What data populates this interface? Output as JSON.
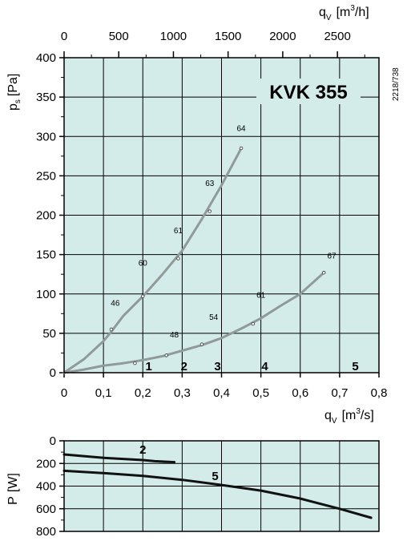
{
  "chart_data": [
    {
      "type": "line",
      "title": "KVK  355",
      "side_code": "2218/738",
      "colors": {
        "background": "#d4ece9",
        "grid": "#000000",
        "curve": "#8f9a99",
        "axis_text": "#000000"
      },
      "x_label": {
        "main": "q",
        "sub": "V",
        "unit": "[m",
        "sup": "3",
        "unit_end": "/s]"
      },
      "y_label": {
        "main": "p",
        "sub": "s",
        "unit": "[Pa]"
      },
      "top_axis_label": {
        "main": "q",
        "sub": "V",
        "unit": "[m",
        "sup": "3",
        "unit_end": "/h]"
      },
      "xlim": [
        0,
        0.8
      ],
      "ylim": [
        0,
        400
      ],
      "top_xlim": [
        0,
        2880
      ],
      "x_ticks": [
        "0",
        "0,1",
        "0,2",
        "0,3",
        "0,4",
        "0,5",
        "0,6",
        "0,7",
        "0,8"
      ],
      "y_ticks": [
        "0",
        "50",
        "100",
        "150",
        "200",
        "250",
        "300",
        "350",
        "400"
      ],
      "top_ticks": [
        "0",
        "500",
        "1000",
        "1500",
        "2000",
        "2500"
      ],
      "grid": true,
      "series": [
        {
          "points": [
            [
              0,
              0
            ],
            [
              0.05,
              17
            ],
            [
              0.1,
              40
            ],
            [
              0.12,
              52
            ],
            [
              0.15,
              72
            ],
            [
              0.2,
              97
            ],
            [
              0.25,
              125
            ],
            [
              0.3,
              155
            ],
            [
              0.35,
              195
            ],
            [
              0.4,
              238
            ],
            [
              0.45,
              285
            ]
          ]
        },
        {
          "points": [
            [
              0,
              0
            ],
            [
              0.05,
              4
            ],
            [
              0.1,
              9
            ],
            [
              0.15,
              12
            ],
            [
              0.2,
              16
            ],
            [
              0.25,
              21
            ],
            [
              0.3,
              28
            ],
            [
              0.35,
              35
            ],
            [
              0.4,
              44
            ],
            [
              0.45,
              56
            ],
            [
              0.5,
              69
            ],
            [
              0.55,
              85
            ],
            [
              0.6,
              100
            ],
            [
              0.66,
              127
            ]
          ]
        }
      ],
      "markers": [
        {
          "x": 0.12,
          "y": 55
        },
        {
          "x": 0.2,
          "y": 97
        },
        {
          "x": 0.29,
          "y": 145
        },
        {
          "x": 0.37,
          "y": 205
        },
        {
          "x": 0.45,
          "y": 285
        },
        {
          "x": 0.18,
          "y": 12
        },
        {
          "x": 0.26,
          "y": 22
        },
        {
          "x": 0.35,
          "y": 36
        },
        {
          "x": 0.48,
          "y": 62
        },
        {
          "x": 0.66,
          "y": 127
        }
      ],
      "point_labels": [
        {
          "text": "46",
          "x": 0.13,
          "y": 85
        },
        {
          "text": "60",
          "x": 0.2,
          "y": 136
        },
        {
          "text": "61",
          "x": 0.29,
          "y": 177
        },
        {
          "text": "63",
          "x": 0.37,
          "y": 237
        },
        {
          "text": "64",
          "x": 0.45,
          "y": 307
        },
        {
          "text": "48",
          "x": 0.28,
          "y": 45
        },
        {
          "text": "54",
          "x": 0.38,
          "y": 67
        },
        {
          "text": "61",
          "x": 0.5,
          "y": 95
        },
        {
          "text": "67",
          "x": 0.68,
          "y": 145
        }
      ],
      "zone_labels": [
        {
          "text": "1",
          "x": 0.215
        },
        {
          "text": "2",
          "x": 0.305
        },
        {
          "text": "3",
          "x": 0.39
        },
        {
          "text": "4",
          "x": 0.51
        },
        {
          "text": "5",
          "x": 0.74
        }
      ]
    },
    {
      "type": "line",
      "y_label": {
        "main": "P",
        "unit": "[W]"
      },
      "xlim": [
        0,
        0.8
      ],
      "ylim": [
        0,
        800
      ],
      "y_inverted": true,
      "y_ticks": [
        "0",
        "200",
        "400",
        "600",
        "800"
      ],
      "grid": true,
      "series": [
        {
          "name": "2",
          "points": [
            [
              0,
              120
            ],
            [
              0.05,
              135
            ],
            [
              0.1,
              150
            ],
            [
              0.15,
              160
            ],
            [
              0.2,
              170
            ],
            [
              0.23,
              180
            ],
            [
              0.28,
              188
            ]
          ]
        },
        {
          "name": "5",
          "points": [
            [
              0,
              265
            ],
            [
              0.1,
              285
            ],
            [
              0.2,
              310
            ],
            [
              0.3,
              345
            ],
            [
              0.4,
              390
            ],
            [
              0.5,
              440
            ],
            [
              0.6,
              510
            ],
            [
              0.7,
              600
            ],
            [
              0.78,
              680
            ]
          ]
        }
      ]
    }
  ]
}
